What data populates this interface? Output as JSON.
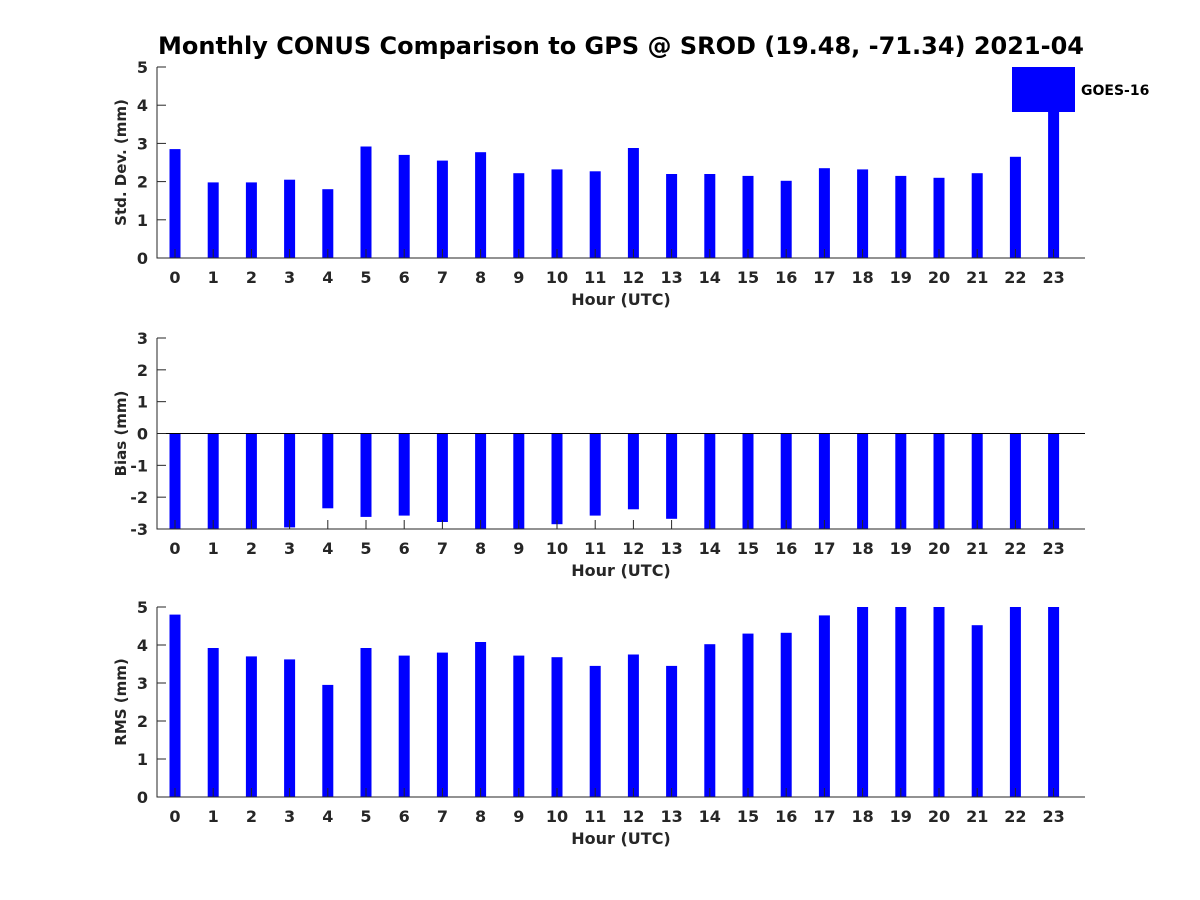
{
  "chart_data": {
    "title": "Monthly CONUS Comparison to GPS @ SROD (19.48, -71.34) 2021-04",
    "legend": {
      "label": "GOES-16",
      "position": "top-right"
    },
    "bar_color": "#0000ff",
    "type": "bar",
    "categories": [
      "0",
      "1",
      "2",
      "3",
      "4",
      "5",
      "6",
      "7",
      "8",
      "9",
      "10",
      "11",
      "12",
      "13",
      "14",
      "15",
      "16",
      "17",
      "18",
      "19",
      "20",
      "21",
      "22",
      "23"
    ],
    "panels": [
      {
        "type": "bar",
        "xlabel": "Hour (UTC)",
        "ylabel": "Std. Dev. (mm)",
        "ylim": [
          0,
          5
        ],
        "yticks": [
          "0",
          "1",
          "2",
          "3",
          "4",
          "5"
        ],
        "series": [
          {
            "name": "GOES-16",
            "values": [
              2.85,
              1.98,
              1.98,
              2.05,
              1.8,
              2.92,
              2.7,
              2.55,
              2.77,
              2.22,
              2.32,
              2.27,
              2.88,
              2.2,
              2.2,
              2.15,
              2.02,
              2.35,
              2.32,
              2.15,
              2.1,
              2.22,
              2.65,
              5.0
            ]
          }
        ]
      },
      {
        "type": "bar",
        "xlabel": "Hour (UTC)",
        "ylabel": "Bias (mm)",
        "ylim": [
          -3,
          3
        ],
        "yticks": [
          "-3",
          "-2",
          "-1",
          "0",
          "1",
          "2",
          "3"
        ],
        "series": [
          {
            "name": "GOES-16",
            "values": [
              -3.0,
              -3.0,
              -3.0,
              -2.95,
              -2.35,
              -2.62,
              -2.58,
              -2.78,
              -3.0,
              -3.0,
              -2.85,
              -2.58,
              -2.38,
              -2.68,
              -3.0,
              -3.0,
              -3.0,
              -3.0,
              -3.0,
              -3.0,
              -3.0,
              -3.0,
              -3.0,
              -3.0
            ]
          }
        ]
      },
      {
        "type": "bar",
        "xlabel": "Hour (UTC)",
        "ylabel": "RMS (mm)",
        "ylim": [
          0,
          5
        ],
        "yticks": [
          "0",
          "1",
          "2",
          "3",
          "4",
          "5"
        ],
        "series": [
          {
            "name": "GOES-16",
            "values": [
              4.8,
              3.92,
              3.7,
              3.62,
              2.95,
              3.92,
              3.72,
              3.8,
              4.08,
              3.72,
              3.68,
              3.45,
              3.75,
              3.45,
              4.02,
              4.3,
              4.32,
              4.78,
              5.0,
              5.0,
              5.0,
              4.52,
              5.0,
              5.0
            ]
          }
        ]
      }
    ]
  }
}
